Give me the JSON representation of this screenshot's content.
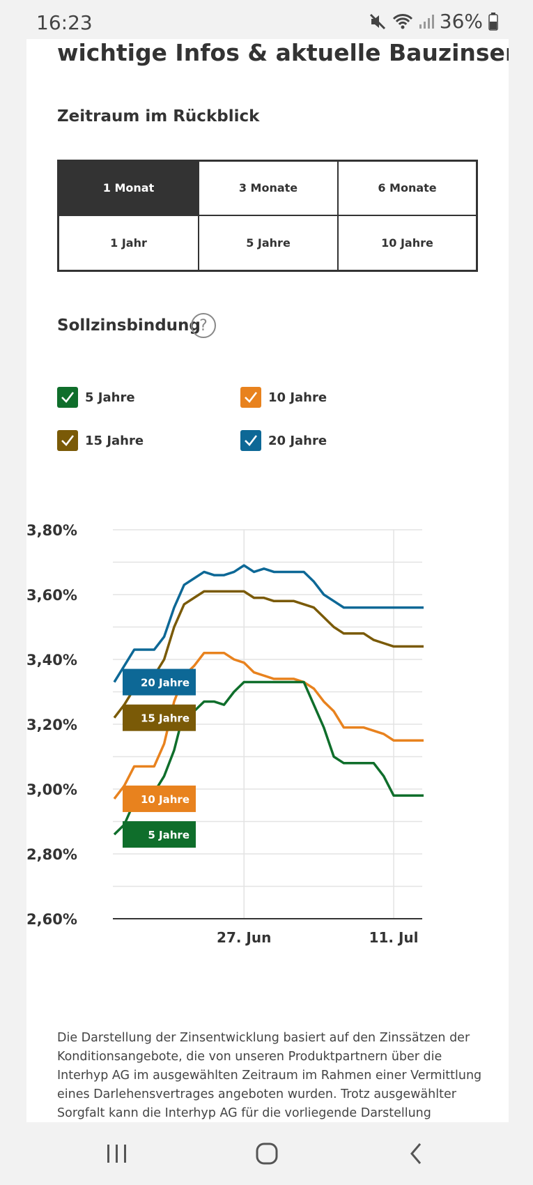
{
  "status": {
    "time": "16:23",
    "battery": "36%"
  },
  "heading": "wichtige Infos & aktuelle Bauzinsen",
  "period": {
    "title": "Zeitraum im Rückblick",
    "options": [
      "1 Monat",
      "3 Monate",
      "6 Monate",
      "1 Jahr",
      "5 Jahre",
      "10 Jahre"
    ],
    "selected": "1 Monat"
  },
  "binding": {
    "title": "Sollzinsbindung",
    "help": "?",
    "items": [
      {
        "label": "5 Jahre",
        "color": "#0f6e2b",
        "checked": true
      },
      {
        "label": "10 Jahre",
        "color": "#e8821e",
        "checked": true
      },
      {
        "label": "15 Jahre",
        "color": "#7a5a07",
        "checked": true
      },
      {
        "label": "20 Jahre",
        "color": "#0d6896",
        "checked": true
      }
    ]
  },
  "chart_data": {
    "type": "line",
    "x": [
      0,
      1,
      2,
      3,
      4,
      5,
      6,
      7,
      8,
      9,
      10,
      11,
      12,
      13,
      14,
      15,
      16,
      17,
      18,
      19,
      20,
      21,
      22,
      23,
      24,
      25,
      26,
      27,
      28,
      29,
      30,
      31
    ],
    "x_ticks": [
      {
        "label": "27. Jun",
        "x": 13
      },
      {
        "label": "11. Jul",
        "x": 28
      }
    ],
    "ylim": [
      2.6,
      3.8
    ],
    "y_ticks": [
      "3,80%",
      "3,60%",
      "3,40%",
      "3,20%",
      "3,00%",
      "2,80%",
      "2,60%"
    ],
    "y_tick_values": [
      3.8,
      3.6,
      3.4,
      3.2,
      3.0,
      2.8,
      2.6
    ],
    "grid": true,
    "series": [
      {
        "name": "20 Jahre",
        "color": "#0d6896",
        "label_y": 3.33,
        "values": [
          3.33,
          3.38,
          3.43,
          3.43,
          3.43,
          3.47,
          3.56,
          3.63,
          3.65,
          3.67,
          3.66,
          3.66,
          3.67,
          3.69,
          3.67,
          3.68,
          3.67,
          3.67,
          3.67,
          3.67,
          3.64,
          3.6,
          3.58,
          3.56,
          3.56,
          3.56,
          3.56,
          3.56,
          3.56,
          3.56,
          3.56,
          3.56
        ]
      },
      {
        "name": "15 Jahre",
        "color": "#7a5a07",
        "label_y": 3.22,
        "values": [
          3.22,
          3.26,
          3.31,
          3.35,
          3.35,
          3.4,
          3.5,
          3.57,
          3.59,
          3.61,
          3.61,
          3.61,
          3.61,
          3.61,
          3.59,
          3.59,
          3.58,
          3.58,
          3.58,
          3.57,
          3.56,
          3.53,
          3.5,
          3.48,
          3.48,
          3.48,
          3.46,
          3.45,
          3.44,
          3.44,
          3.44,
          3.44
        ]
      },
      {
        "name": "10 Jahre",
        "color": "#e8821e",
        "label_y": 2.97,
        "values": [
          2.97,
          3.01,
          3.07,
          3.07,
          3.07,
          3.14,
          3.27,
          3.35,
          3.38,
          3.42,
          3.42,
          3.42,
          3.4,
          3.39,
          3.36,
          3.35,
          3.34,
          3.34,
          3.34,
          3.33,
          3.31,
          3.27,
          3.24,
          3.19,
          3.19,
          3.19,
          3.18,
          3.17,
          3.15,
          3.15,
          3.15,
          3.15
        ]
      },
      {
        "name": "5 Jahre",
        "color": "#0f6e2b",
        "label_y": 2.86,
        "values": [
          2.86,
          2.89,
          2.96,
          2.99,
          2.99,
          3.04,
          3.12,
          3.24,
          3.24,
          3.27,
          3.27,
          3.26,
          3.3,
          3.33,
          3.33,
          3.33,
          3.33,
          3.33,
          3.33,
          3.33,
          3.26,
          3.19,
          3.1,
          3.08,
          3.08,
          3.08,
          3.08,
          3.04,
          2.98,
          2.98,
          2.98,
          2.98
        ]
      }
    ]
  },
  "footnote": "Die Darstellung der Zinsentwicklung basiert auf den Zinssätzen der Konditionsangebote, die von unseren Produktpartnern über die Interhyp AG im ausgewählten Zeitraum im Rahmen einer Vermittlung eines Darlehensvertrages angeboten wurden. Trotz ausgewählter Sorgfalt kann die Interhyp AG für die vorliegende Darstellung keinerlei"
}
